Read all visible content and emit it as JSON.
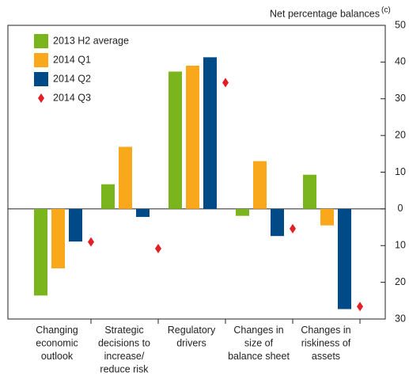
{
  "chart_data": {
    "type": "bar",
    "y_label": "Net percentage balances",
    "y_label_note": "(c)",
    "categories": [
      "Changing\neconomic\noutlook",
      "Strategic\ndecisions to\nincrease/\nreduce risk",
      "Regulatory\ndrivers",
      "Changes in\nsize of\nbalance sheet",
      "Changes in\nriskiness of\nassets"
    ],
    "series": [
      {
        "name": "2013 H2 average",
        "color": "#7ab51d",
        "values": [
          -23.6,
          6.7,
          37.4,
          -1.9,
          9.3
        ]
      },
      {
        "name": "2014 Q1",
        "color": "#f9a81b",
        "values": [
          -16.2,
          16.9,
          39.0,
          13.0,
          -4.5
        ]
      },
      {
        "name": "2014 Q2",
        "color": "#004b87",
        "values": [
          -8.9,
          -2.2,
          41.3,
          -7.4,
          -27.3
        ]
      },
      {
        "name": "2014 Q3",
        "color": "#e31f26",
        "marker": "diamond",
        "values": [
          -9.0,
          -10.8,
          34.4,
          -5.4,
          -26.6
        ]
      }
    ],
    "ylim": [
      -30,
      50
    ],
    "yticks": [
      50,
      40,
      30,
      20,
      10,
      0,
      {
        "value": -10,
        "label": "10"
      },
      {
        "value": -20,
        "label": "20"
      },
      {
        "value": -30,
        "label": "30"
      }
    ],
    "legend": "top-left"
  }
}
